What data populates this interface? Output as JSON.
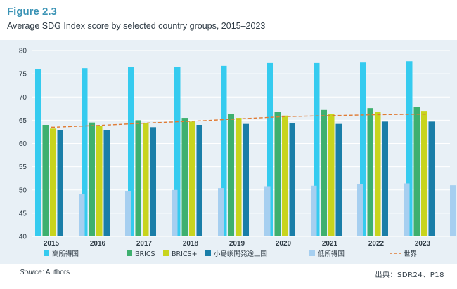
{
  "header": {
    "figure_label": "Figure 2.3",
    "title": "Average SDG Index score by selected country groups, 2015–2023"
  },
  "footer": {
    "source_label": "Source:",
    "source_value": " Authors",
    "credit": "出典：SDR24、P18"
  },
  "colors": {
    "panel_bg": "#e8f0f6",
    "grid": "#ffffff",
    "high_income": "#35cbef",
    "brics": "#3eb06f",
    "brics_plus": "#c8d41e",
    "sids": "#1a7ea8",
    "low_income": "#a6cff0",
    "world": "#e07b34"
  },
  "chart_data": {
    "type": "bar",
    "title": "Average SDG Index score by selected country groups, 2015–2023",
    "categories": [
      "2015",
      "2016",
      "2017",
      "2018",
      "2019",
      "2020",
      "2021",
      "2022",
      "2023"
    ],
    "ylim": [
      40,
      80
    ],
    "yticks": [
      40,
      45,
      50,
      55,
      60,
      65,
      70,
      75,
      80
    ],
    "grid": true,
    "legend_position": "bottom",
    "series": [
      {
        "name": "高所得国",
        "color_key": "high_income",
        "values": [
          76.0,
          76.2,
          76.4,
          76.4,
          76.7,
          77.3,
          77.3,
          77.4,
          77.7
        ]
      },
      {
        "name": "BRICS",
        "color_key": "brics",
        "values": [
          64.0,
          64.5,
          65.0,
          65.5,
          66.3,
          66.8,
          67.2,
          67.6,
          67.9
        ]
      },
      {
        "name": "BRICS+",
        "color_key": "brics_plus",
        "values": [
          63.2,
          63.7,
          64.3,
          64.7,
          65.5,
          66.0,
          66.4,
          66.8,
          67.0
        ]
      },
      {
        "name": "小島嶼開発途上国",
        "color_key": "sids",
        "values": [
          62.8,
          62.8,
          63.5,
          64.0,
          64.2,
          64.3,
          64.2,
          64.7,
          64.7
        ]
      },
      {
        "name": "低所得国",
        "color_key": "low_income",
        "values": [
          49.2,
          49.7,
          50.0,
          50.4,
          50.8,
          50.9,
          51.3,
          51.4,
          51.0
        ]
      }
    ],
    "line_series": {
      "name": "世界",
      "color_key": "world",
      "style": "dashed",
      "values": [
        63.5,
        63.9,
        64.4,
        64.8,
        65.3,
        65.8,
        66.0,
        66.2,
        66.3
      ]
    }
  }
}
